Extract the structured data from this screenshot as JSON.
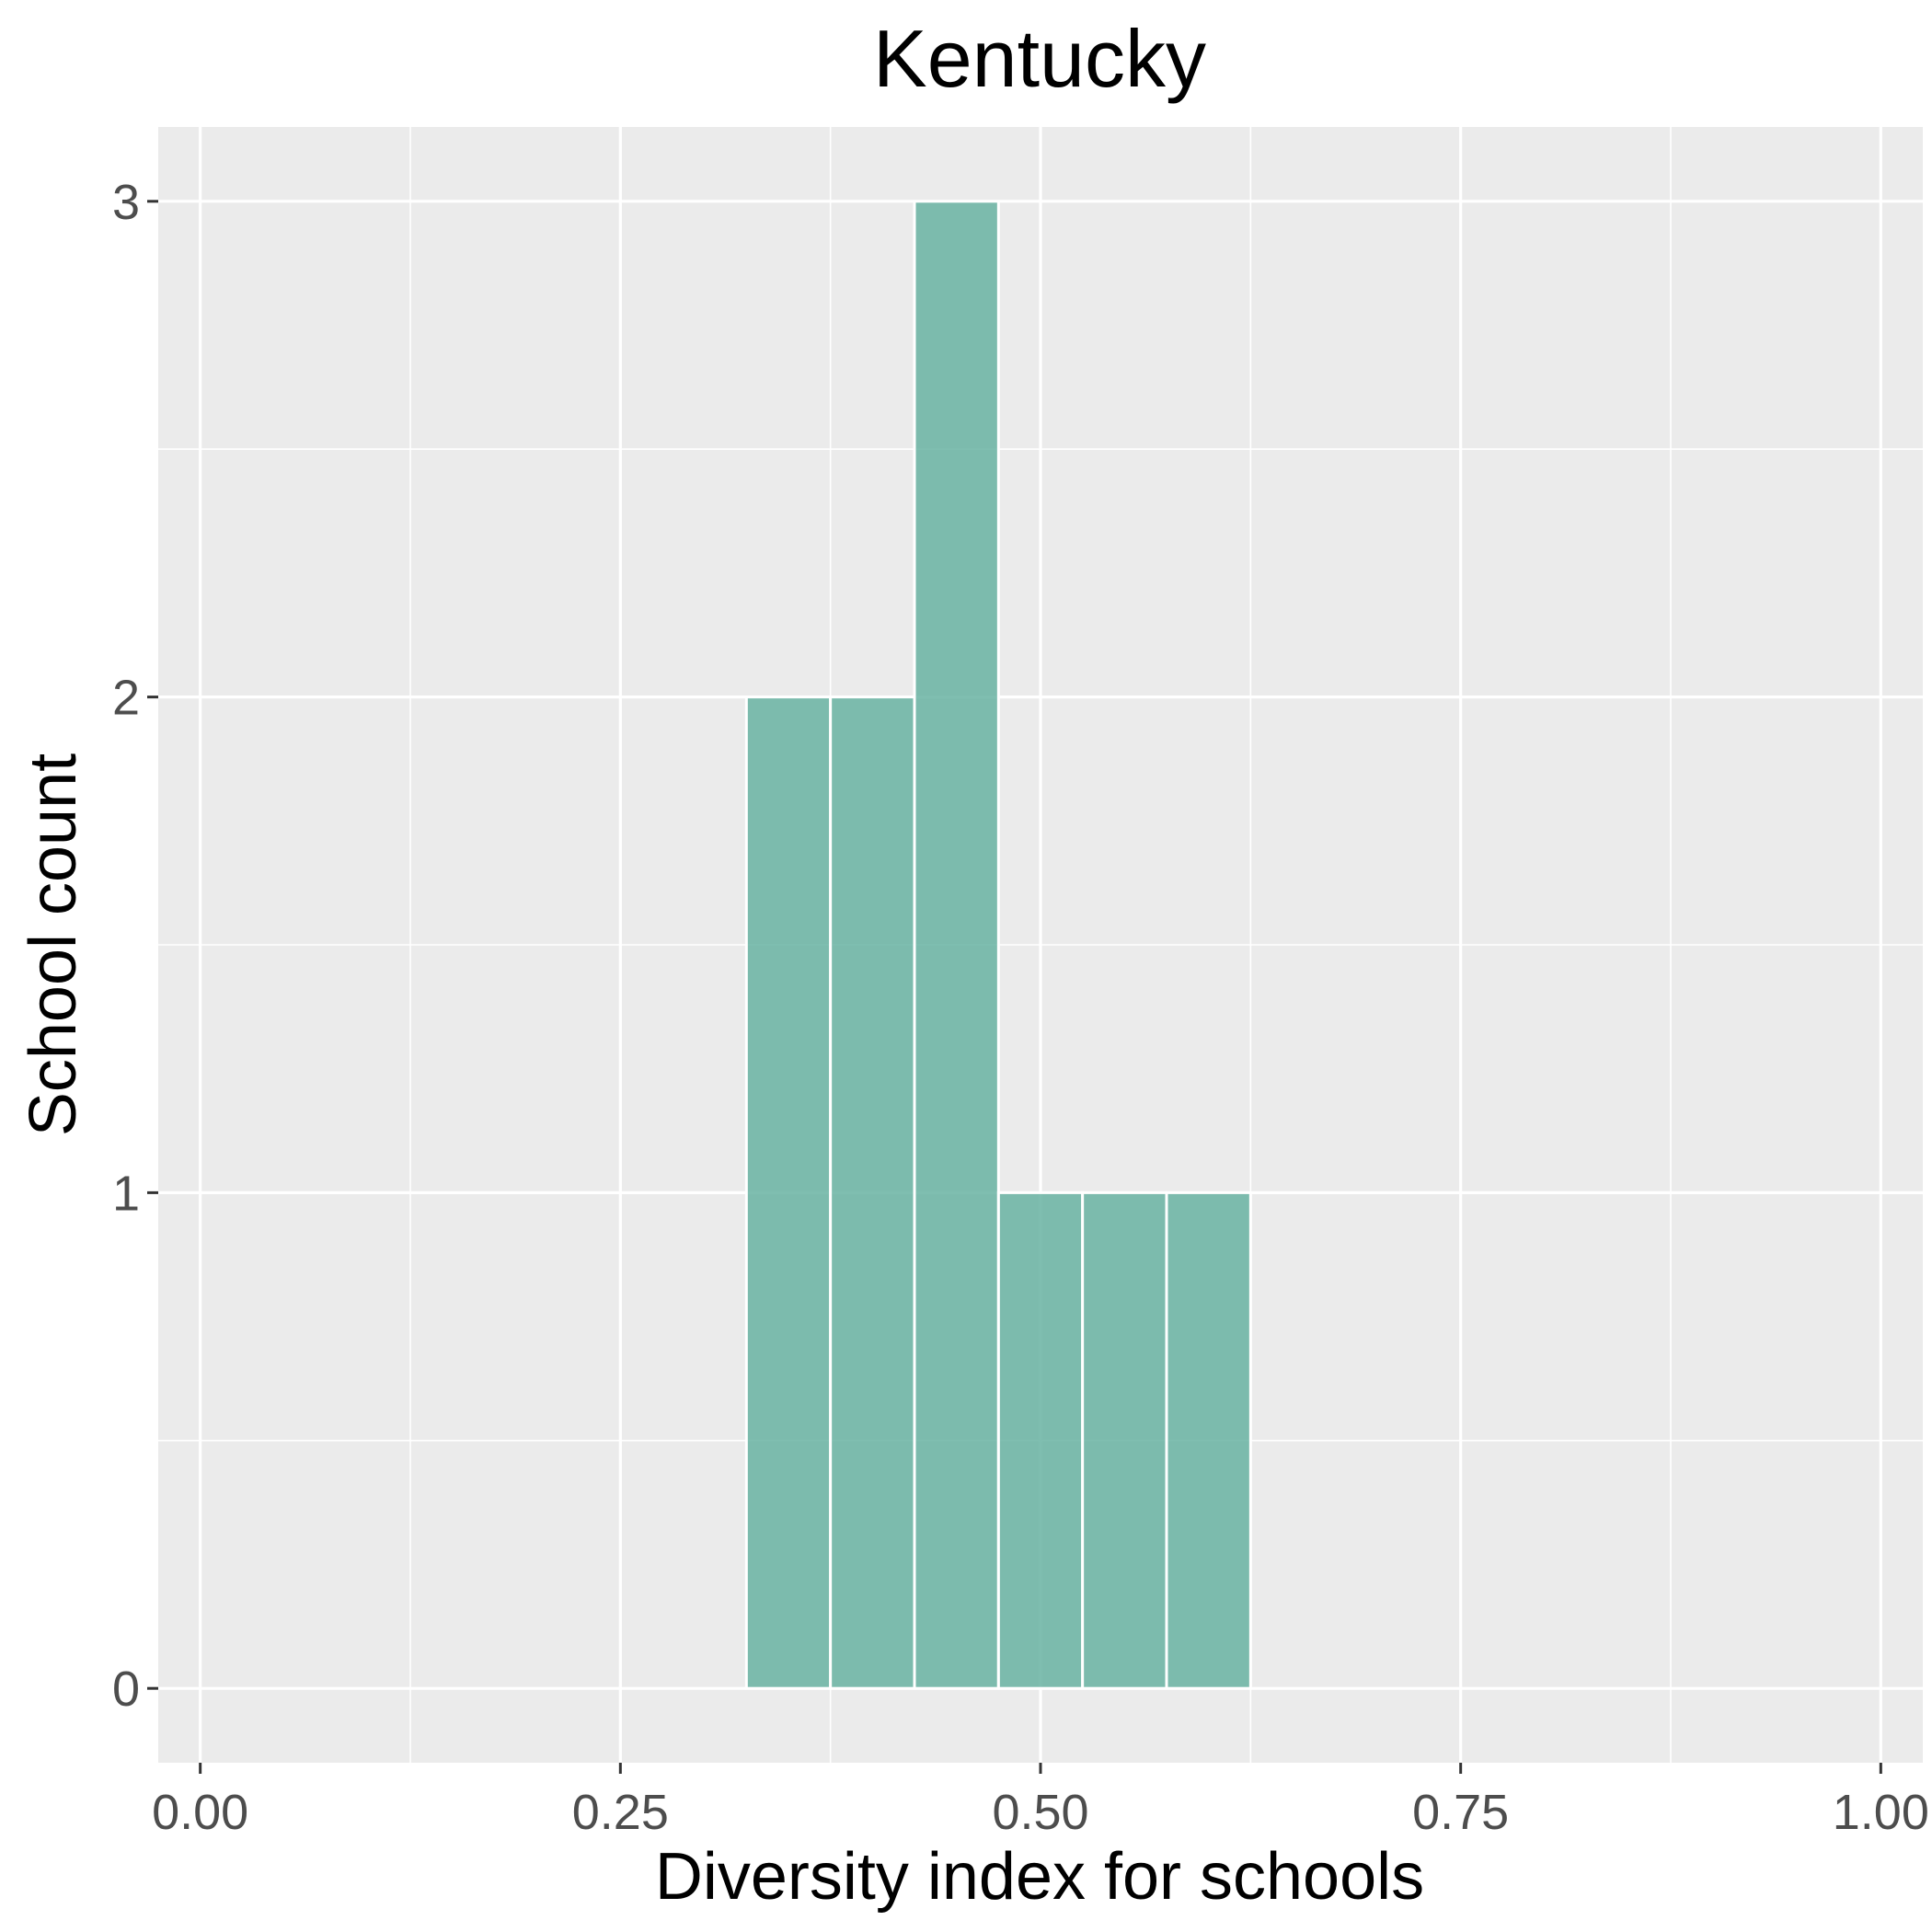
{
  "chart_data": {
    "type": "bar",
    "title": "Kentucky",
    "xlabel": "Diversity index for schools",
    "ylabel": "School count",
    "xlim": [
      -0.025,
      1.025
    ],
    "ylim": [
      -0.15,
      3.15
    ],
    "x_ticks": [
      0,
      0.25,
      0.5,
      0.75,
      1
    ],
    "x_tick_labels": [
      "0.00",
      "0.25",
      "0.50",
      "0.75",
      "1.00"
    ],
    "y_ticks": [
      0,
      1,
      2,
      3
    ],
    "y_tick_labels": [
      "0",
      "1",
      "2",
      "3"
    ],
    "bin_width": 0.05,
    "bins": [
      {
        "x": 0.0,
        "count": 0
      },
      {
        "x": 0.05,
        "count": 0
      },
      {
        "x": 0.1,
        "count": 0
      },
      {
        "x": 0.15,
        "count": 0
      },
      {
        "x": 0.2,
        "count": 0
      },
      {
        "x": 0.25,
        "count": 0
      },
      {
        "x": 0.3,
        "count": 0
      },
      {
        "x": 0.35,
        "count": 2
      },
      {
        "x": 0.4,
        "count": 2
      },
      {
        "x": 0.45,
        "count": 3
      },
      {
        "x": 0.5,
        "count": 1
      },
      {
        "x": 0.55,
        "count": 1
      },
      {
        "x": 0.6,
        "count": 1
      },
      {
        "x": 0.65,
        "count": 0
      },
      {
        "x": 0.7,
        "count": 0
      },
      {
        "x": 0.75,
        "count": 0
      },
      {
        "x": 0.8,
        "count": 0
      },
      {
        "x": 0.85,
        "count": 0
      },
      {
        "x": 0.9,
        "count": 0
      },
      {
        "x": 0.95,
        "count": 0
      },
      {
        "x": 1.0,
        "count": 0
      }
    ],
    "bar_color": "#69b3a2",
    "panel_background": "#ebebeb",
    "grid": true,
    "legend": "none"
  }
}
